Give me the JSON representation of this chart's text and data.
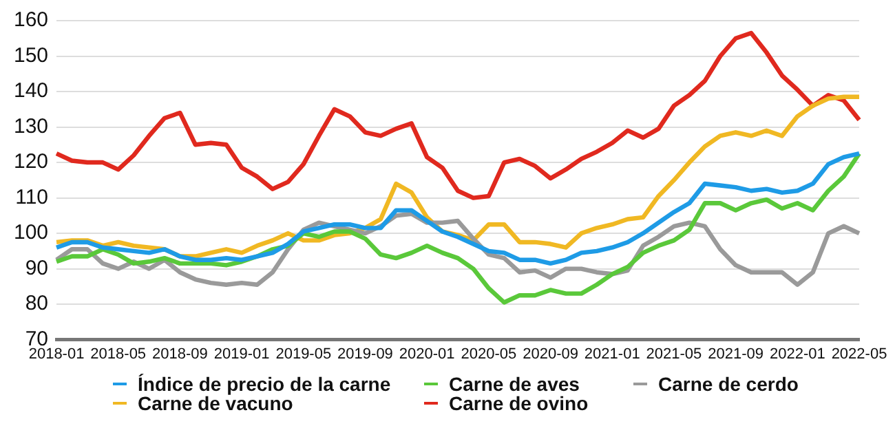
{
  "chart_data": {
    "type": "line",
    "categories": [
      "2018-01",
      null,
      null,
      null,
      "2018-05",
      null,
      null,
      null,
      "2018-09",
      null,
      null,
      null,
      "2019-01",
      null,
      null,
      null,
      "2019-05",
      null,
      null,
      null,
      "2019-09",
      null,
      null,
      null,
      "2020-01",
      null,
      null,
      null,
      "2020-05",
      null,
      null,
      null,
      "2020-09",
      null,
      null,
      null,
      "2021-01",
      null,
      null,
      null,
      "2021-05",
      null,
      null,
      null,
      "2021-09",
      null,
      null,
      null,
      "2022-01",
      null,
      null,
      null,
      "2022-05"
    ],
    "series": [
      {
        "name": "Índice de precio de la carne",
        "color": "#1e9be6",
        "values": [
          96,
          97.5,
          97.5,
          96,
          95.5,
          95,
          94.5,
          95.5,
          93.5,
          92.5,
          92.5,
          93,
          92.5,
          93.5,
          94.5,
          97,
          100.5,
          101.5,
          102.5,
          102.5,
          101.5,
          101.5,
          106.5,
          106.5,
          103.5,
          100.5,
          99,
          97,
          95,
          94.5,
          92.5,
          92.5,
          91.5,
          92.5,
          94.5,
          95,
          96,
          97.5,
          100,
          103,
          106,
          108.5,
          114,
          113.5,
          113,
          112,
          112.5,
          111.5,
          112,
          114,
          119.5,
          121.5,
          122.5
        ]
      },
      {
        "name": "Carne de aves",
        "color": "#5ac83a",
        "values": [
          92,
          93.5,
          93.5,
          95.5,
          94,
          91.5,
          92,
          93,
          91.5,
          91.5,
          91.5,
          91,
          92,
          93.5,
          95.5,
          96.5,
          100,
          99,
          100.5,
          100.5,
          98.5,
          94,
          93,
          94.5,
          96.5,
          94.5,
          93,
          90,
          84.5,
          80.5,
          82.5,
          82.5,
          84,
          83,
          83,
          85.5,
          88.5,
          90.5,
          94.5,
          96.5,
          98,
          101,
          108.5,
          108.5,
          106.5,
          108.5,
          109.5,
          107,
          108.5,
          106.5,
          112,
          116,
          122.5
        ]
      },
      {
        "name": "Carne de cerdo",
        "color": "#9a9a9a",
        "values": [
          92.5,
          95.5,
          95.5,
          91.5,
          90,
          92,
          90,
          92.5,
          89,
          87,
          86,
          85.5,
          86,
          85.5,
          89,
          95.5,
          101,
          103,
          102,
          101,
          100,
          102,
          105,
          105.5,
          103,
          103,
          103.5,
          98.5,
          94,
          93,
          89,
          89.5,
          87.5,
          90,
          90,
          89,
          88.5,
          89.5,
          96.5,
          99,
          102,
          103,
          102,
          95.5,
          91,
          89,
          89,
          89,
          85.5,
          89,
          100,
          102,
          100
        ]
      },
      {
        "name": "Carne de vacuno",
        "color": "#f0b823",
        "values": [
          97.5,
          98,
          98,
          96.5,
          97.5,
          96.5,
          96,
          95.5,
          93.5,
          93.5,
          94.5,
          95.5,
          94.5,
          96.5,
          98,
          100,
          98,
          98,
          99.5,
          100,
          101.5,
          104,
          114,
          111.5,
          104.5,
          100.5,
          99.5,
          98,
          102.5,
          102.5,
          97.5,
          97.5,
          97,
          96,
          100,
          101.5,
          102.5,
          104,
          104.5,
          110.5,
          115,
          120,
          124.5,
          127.5,
          128.5,
          127.5,
          129,
          127.5,
          133,
          136,
          138,
          138.5,
          138.5
        ]
      },
      {
        "name": "Carne de ovino",
        "color": "#e0291e",
        "values": [
          122.5,
          120.5,
          120,
          120,
          118,
          122,
          127.5,
          132.5,
          134,
          125,
          125.5,
          125,
          118.5,
          116,
          112.5,
          114.5,
          119.5,
          127.5,
          135,
          133,
          128.5,
          127.5,
          129.5,
          131,
          121.5,
          118.5,
          112,
          110,
          110.5,
          120,
          121,
          119,
          115.5,
          118,
          121,
          123,
          125.5,
          129,
          127,
          129.5,
          136,
          139,
          143,
          150,
          155,
          156.5,
          151,
          144.5,
          140.5,
          136,
          139,
          137.5,
          132
        ]
      }
    ],
    "ylim": [
      70,
      160
    ],
    "yticks": [
      70,
      80,
      90,
      100,
      110,
      120,
      130,
      140,
      150,
      160
    ],
    "grid": "y",
    "legend": "bottom",
    "marker": "none",
    "line_style": "solid"
  }
}
